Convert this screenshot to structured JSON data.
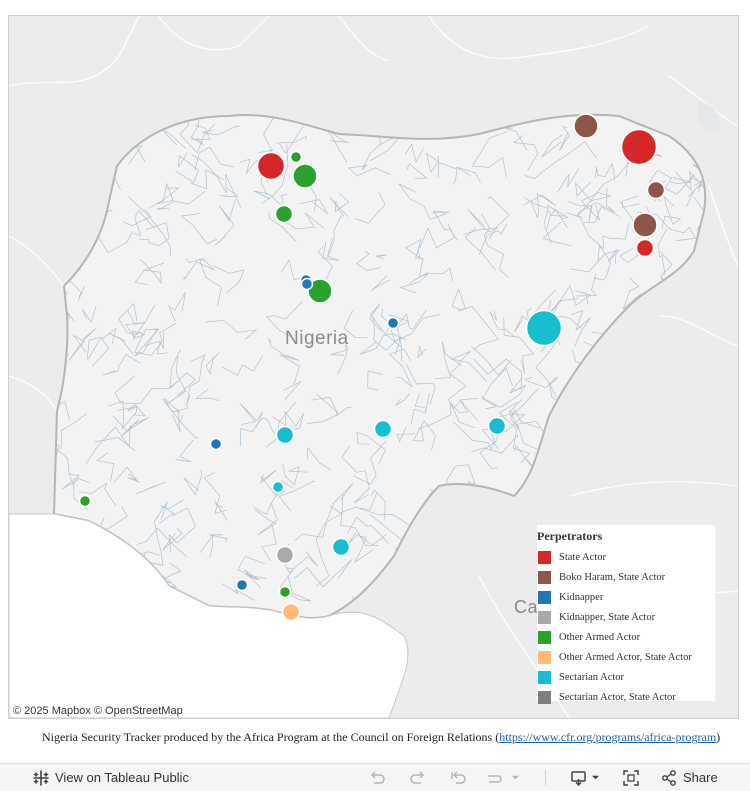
{
  "map": {
    "country_label": "Nigeria",
    "neighbor_label": "Ca",
    "attribution": "© 2025 Mapbox  © OpenStreetMap"
  },
  "legend": {
    "title": "Perpetrators",
    "items": [
      {
        "label": "State Actor",
        "color": "#d62728"
      },
      {
        "label": "Boko Haram, State Actor",
        "color": "#8c564b"
      },
      {
        "label": "Kidnapper",
        "color": "#1f77b4"
      },
      {
        "label": "Kidnapper, State Actor",
        "color": "#a9a9a9"
      },
      {
        "label": "Other Armed Actor",
        "color": "#2ca02c"
      },
      {
        "label": "Other Armed Actor, State Actor",
        "color": "#ffbb78"
      },
      {
        "label": "Sectarian Actor",
        "color": "#17becf"
      },
      {
        "label": "Sectarian Actor, State Actor",
        "color": "#7f7f7f"
      }
    ]
  },
  "markers": [
    {
      "category": "State Actor",
      "size": "large"
    },
    {
      "category": "State Actor",
      "size": "xlarge"
    },
    {
      "category": "State Actor",
      "size": "small"
    },
    {
      "category": "Boko Haram, State Actor",
      "size": "medium"
    },
    {
      "category": "Boko Haram, State Actor",
      "size": "small"
    },
    {
      "category": "Boko Haram, State Actor",
      "size": "medium"
    },
    {
      "category": "Other Armed Actor",
      "size": "tiny"
    },
    {
      "category": "Other Armed Actor",
      "size": "medium"
    },
    {
      "category": "Other Armed Actor",
      "size": "small"
    },
    {
      "category": "Other Armed Actor",
      "size": "medium"
    },
    {
      "category": "Other Armed Actor",
      "size": "tiny"
    },
    {
      "category": "Other Armed Actor",
      "size": "tiny"
    },
    {
      "category": "Kidnapper",
      "size": "tiny"
    },
    {
      "category": "Kidnapper",
      "size": "tiny"
    },
    {
      "category": "Kidnapper",
      "size": "tiny"
    },
    {
      "category": "Kidnapper",
      "size": "tiny"
    },
    {
      "category": "Kidnapper",
      "size": "tiny"
    },
    {
      "category": "Sectarian Actor",
      "size": "xlarge"
    },
    {
      "category": "Sectarian Actor",
      "size": "small"
    },
    {
      "category": "Sectarian Actor",
      "size": "small"
    },
    {
      "category": "Sectarian Actor",
      "size": "small"
    },
    {
      "category": "Sectarian Actor",
      "size": "tiny"
    },
    {
      "category": "Sectarian Actor",
      "size": "small"
    },
    {
      "category": "Kidnapper, State Actor",
      "size": "small"
    },
    {
      "category": "Other Armed Actor, State Actor",
      "size": "small"
    }
  ],
  "caption": {
    "text": "Nigeria Security Tracker produced by the Africa Program at the Council on Foreign Relations (",
    "link": "https://www.cfr.org/programs/africa-program",
    "close": ")"
  },
  "toolbar": {
    "view_label": "View on Tableau Public",
    "share_label": "Share",
    "icons": [
      "tableau-logo-icon",
      "undo-icon",
      "redo-icon",
      "revert-icon",
      "refresh-icon",
      "download-icon",
      "fullscreen-icon",
      "share-icon"
    ]
  }
}
